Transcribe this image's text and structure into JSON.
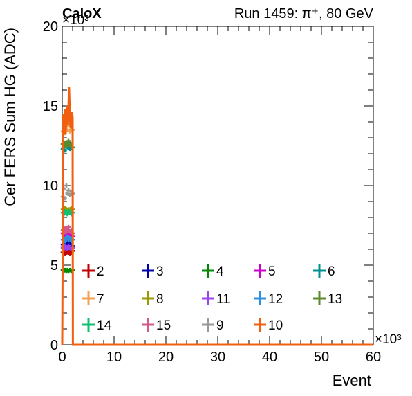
{
  "chart_data": {
    "type": "scatter",
    "experiment_label": "CaloX",
    "run_label": "Run 1459: π⁺, 80 GeV",
    "xlabel": "Event",
    "ylabel": "Cer FERS Sum HG (ADC)",
    "x_multiplier": "×10³",
    "y_multiplier": "×10³",
    "xlim": [
      0,
      60
    ],
    "ylim": [
      0,
      20
    ],
    "x_ticks": [
      0,
      10,
      20,
      30,
      40,
      50,
      60
    ],
    "y_ticks": [
      0,
      5,
      10,
      15,
      20
    ],
    "grid": false,
    "legend_position": "bottom, inside plot",
    "series": [
      {
        "name": "2",
        "color": "#c00000",
        "x": [
          0.1,
          0.3,
          0.5,
          0.8,
          1.0,
          1.2,
          1.5,
          1.8,
          2.0
        ],
        "y": [
          5.8,
          5.9,
          5.7,
          6.0,
          5.8,
          5.9,
          5.7,
          5.8,
          5.9
        ]
      },
      {
        "name": "3",
        "color": "#0000a8",
        "x": [
          0.1,
          0.3,
          0.5,
          0.8,
          1.0,
          1.2,
          1.5,
          1.8,
          2.0
        ],
        "y": [
          6.3,
          6.5,
          6.2,
          6.4,
          6.6,
          6.3,
          6.5,
          6.4,
          6.2
        ]
      },
      {
        "name": "4",
        "color": "#008a00",
        "x": [
          0.1,
          0.3,
          0.5,
          0.8,
          1.0,
          1.2,
          1.5,
          1.8,
          2.0
        ],
        "y": [
          4.7,
          4.6,
          4.7,
          4.6,
          4.7,
          4.6,
          4.7,
          4.6,
          4.7
        ]
      },
      {
        "name": "5",
        "color": "#cc00cc",
        "x": [
          0.1,
          0.3,
          0.5,
          0.8,
          1.0,
          1.2,
          1.5,
          1.8,
          2.0
        ],
        "y": [
          7.0,
          6.8,
          7.1,
          6.9,
          7.0,
          7.2,
          6.9,
          7.0,
          6.8
        ]
      },
      {
        "name": "6",
        "color": "#009090",
        "x": [
          0.1,
          0.3,
          0.5,
          0.8,
          1.0,
          1.2,
          1.5,
          1.8,
          2.0
        ],
        "y": [
          12.3,
          12.5,
          12.2,
          12.6,
          12.4,
          12.7,
          12.3,
          12.5,
          12.4
        ]
      },
      {
        "name": "7",
        "color": "#f5a050",
        "x": [
          0.1,
          0.3,
          0.5,
          0.8,
          1.0,
          1.2,
          1.5,
          1.8,
          2.0
        ],
        "y": [
          13.4,
          13.6,
          13.3,
          13.7,
          13.5,
          13.8,
          13.4,
          13.6,
          13.5
        ]
      },
      {
        "name": "8",
        "color": "#999900",
        "x": [
          0.1,
          0.3,
          0.5,
          0.8,
          1.0,
          1.2,
          1.5,
          1.8,
          2.0
        ],
        "y": [
          8.5,
          8.4,
          8.6,
          8.5,
          8.3,
          8.5,
          8.4,
          8.6,
          8.5
        ]
      },
      {
        "name": "11",
        "color": "#9944ee",
        "x": [
          0.1,
          0.3,
          0.5,
          0.8,
          1.0,
          1.2,
          1.5,
          1.8,
          2.0
        ],
        "y": [
          6.1,
          6.0,
          6.2,
          6.1,
          6.0,
          6.2,
          6.1,
          6.0,
          6.1
        ]
      },
      {
        "name": "12",
        "color": "#3090e0",
        "x": [
          0.1,
          0.3,
          0.5,
          0.8,
          1.0,
          1.2,
          1.5,
          1.8,
          2.0
        ],
        "y": [
          6.6,
          6.7,
          6.5,
          6.6,
          6.8,
          6.6,
          6.7,
          6.5,
          6.6
        ]
      },
      {
        "name": "13",
        "color": "#5a8a2a",
        "x": [
          0.1,
          0.3,
          0.5,
          0.8,
          1.0,
          1.2,
          1.5,
          1.8,
          2.0
        ],
        "y": [
          12.6,
          12.4,
          12.7,
          12.5,
          12.6,
          12.8,
          12.5,
          12.6,
          12.4
        ]
      },
      {
        "name": "14",
        "color": "#10c070",
        "x": [
          0.1,
          0.3,
          0.5,
          0.8,
          1.0,
          1.2,
          1.5,
          1.8,
          2.0
        ],
        "y": [
          8.3,
          8.2,
          8.4,
          8.3,
          8.2,
          8.4,
          8.3,
          8.2,
          8.3
        ]
      },
      {
        "name": "15",
        "color": "#d05a8a",
        "x": [
          0.1,
          0.3,
          0.5,
          0.8,
          1.0,
          1.2,
          1.5,
          1.8,
          2.0
        ],
        "y": [
          7.2,
          7.0,
          7.3,
          7.1,
          7.2,
          7.4,
          7.1,
          7.2,
          7.0
        ]
      },
      {
        "name": "9",
        "color": "#999999",
        "x": [
          0.1,
          0.3,
          0.5,
          0.8,
          1.0,
          1.2,
          1.5,
          1.8,
          2.0
        ],
        "y": [
          9.3,
          9.8,
          9.2,
          10.0,
          9.5,
          9.7,
          9.4,
          9.6,
          9.5
        ]
      },
      {
        "name": "10",
        "color": "#f06010",
        "x": [
          0.0,
          0.2,
          0.3,
          0.5,
          0.6,
          0.8,
          1.0,
          1.1,
          1.3,
          1.5,
          1.6,
          1.8,
          2.0,
          2.05,
          2.1,
          60
        ],
        "y": [
          0,
          14.5,
          13.5,
          14.8,
          13.2,
          14.0,
          15.0,
          13.8,
          16.2,
          14.2,
          13.6,
          14.6,
          14.3,
          0,
          0,
          0
        ]
      }
    ]
  }
}
